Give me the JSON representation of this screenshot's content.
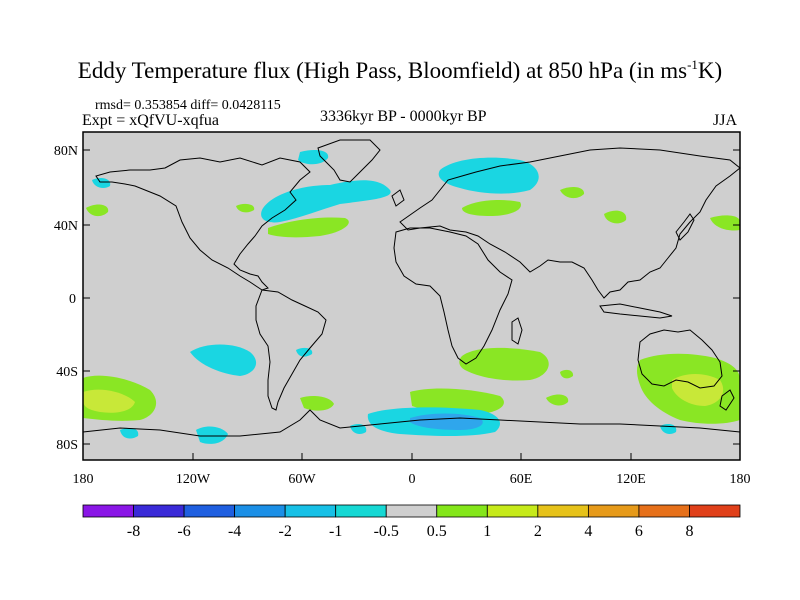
{
  "title": {
    "main": "Eddy Temperature flux (High Pass, Bloomfield) at 850 hPa (in ms",
    "sup": "-1",
    "tail": "K)"
  },
  "stats_line": "rmsd= 0.353854  diff= 0.0428115",
  "experiment": "Expt = xQfVU-xqfua",
  "period": "3336kyr BP - 0000kyr BP",
  "season": "JJA",
  "axes": {
    "lat_ticks": [
      "80N",
      "40N",
      "0",
      "40S",
      "80S"
    ],
    "lon_ticks": [
      "180",
      "120W",
      "60W",
      "0",
      "60E",
      "120E",
      "180"
    ]
  },
  "colorbar": {
    "labels": [
      "-8",
      "-6",
      "-4",
      "-2",
      "-1",
      "-0.5",
      "0.5",
      "1",
      "2",
      "4",
      "6",
      "8"
    ],
    "colors": [
      "#8a16e6",
      "#3a2ad8",
      "#1f5fe0",
      "#1b8fe6",
      "#17c0e6",
      "#16d8d4",
      "#cfcfcf",
      "#84e61a",
      "#c6ea1a",
      "#e6c21a",
      "#e69a1a",
      "#e6701a",
      "#e0401a"
    ]
  },
  "map_colors": {
    "land_background": "#cfcfcf",
    "cyan": "#1ad6e2",
    "blue": "#2fa6ec",
    "green": "#8ae624",
    "yellow": "#c8e838",
    "coast": "#000000"
  }
}
